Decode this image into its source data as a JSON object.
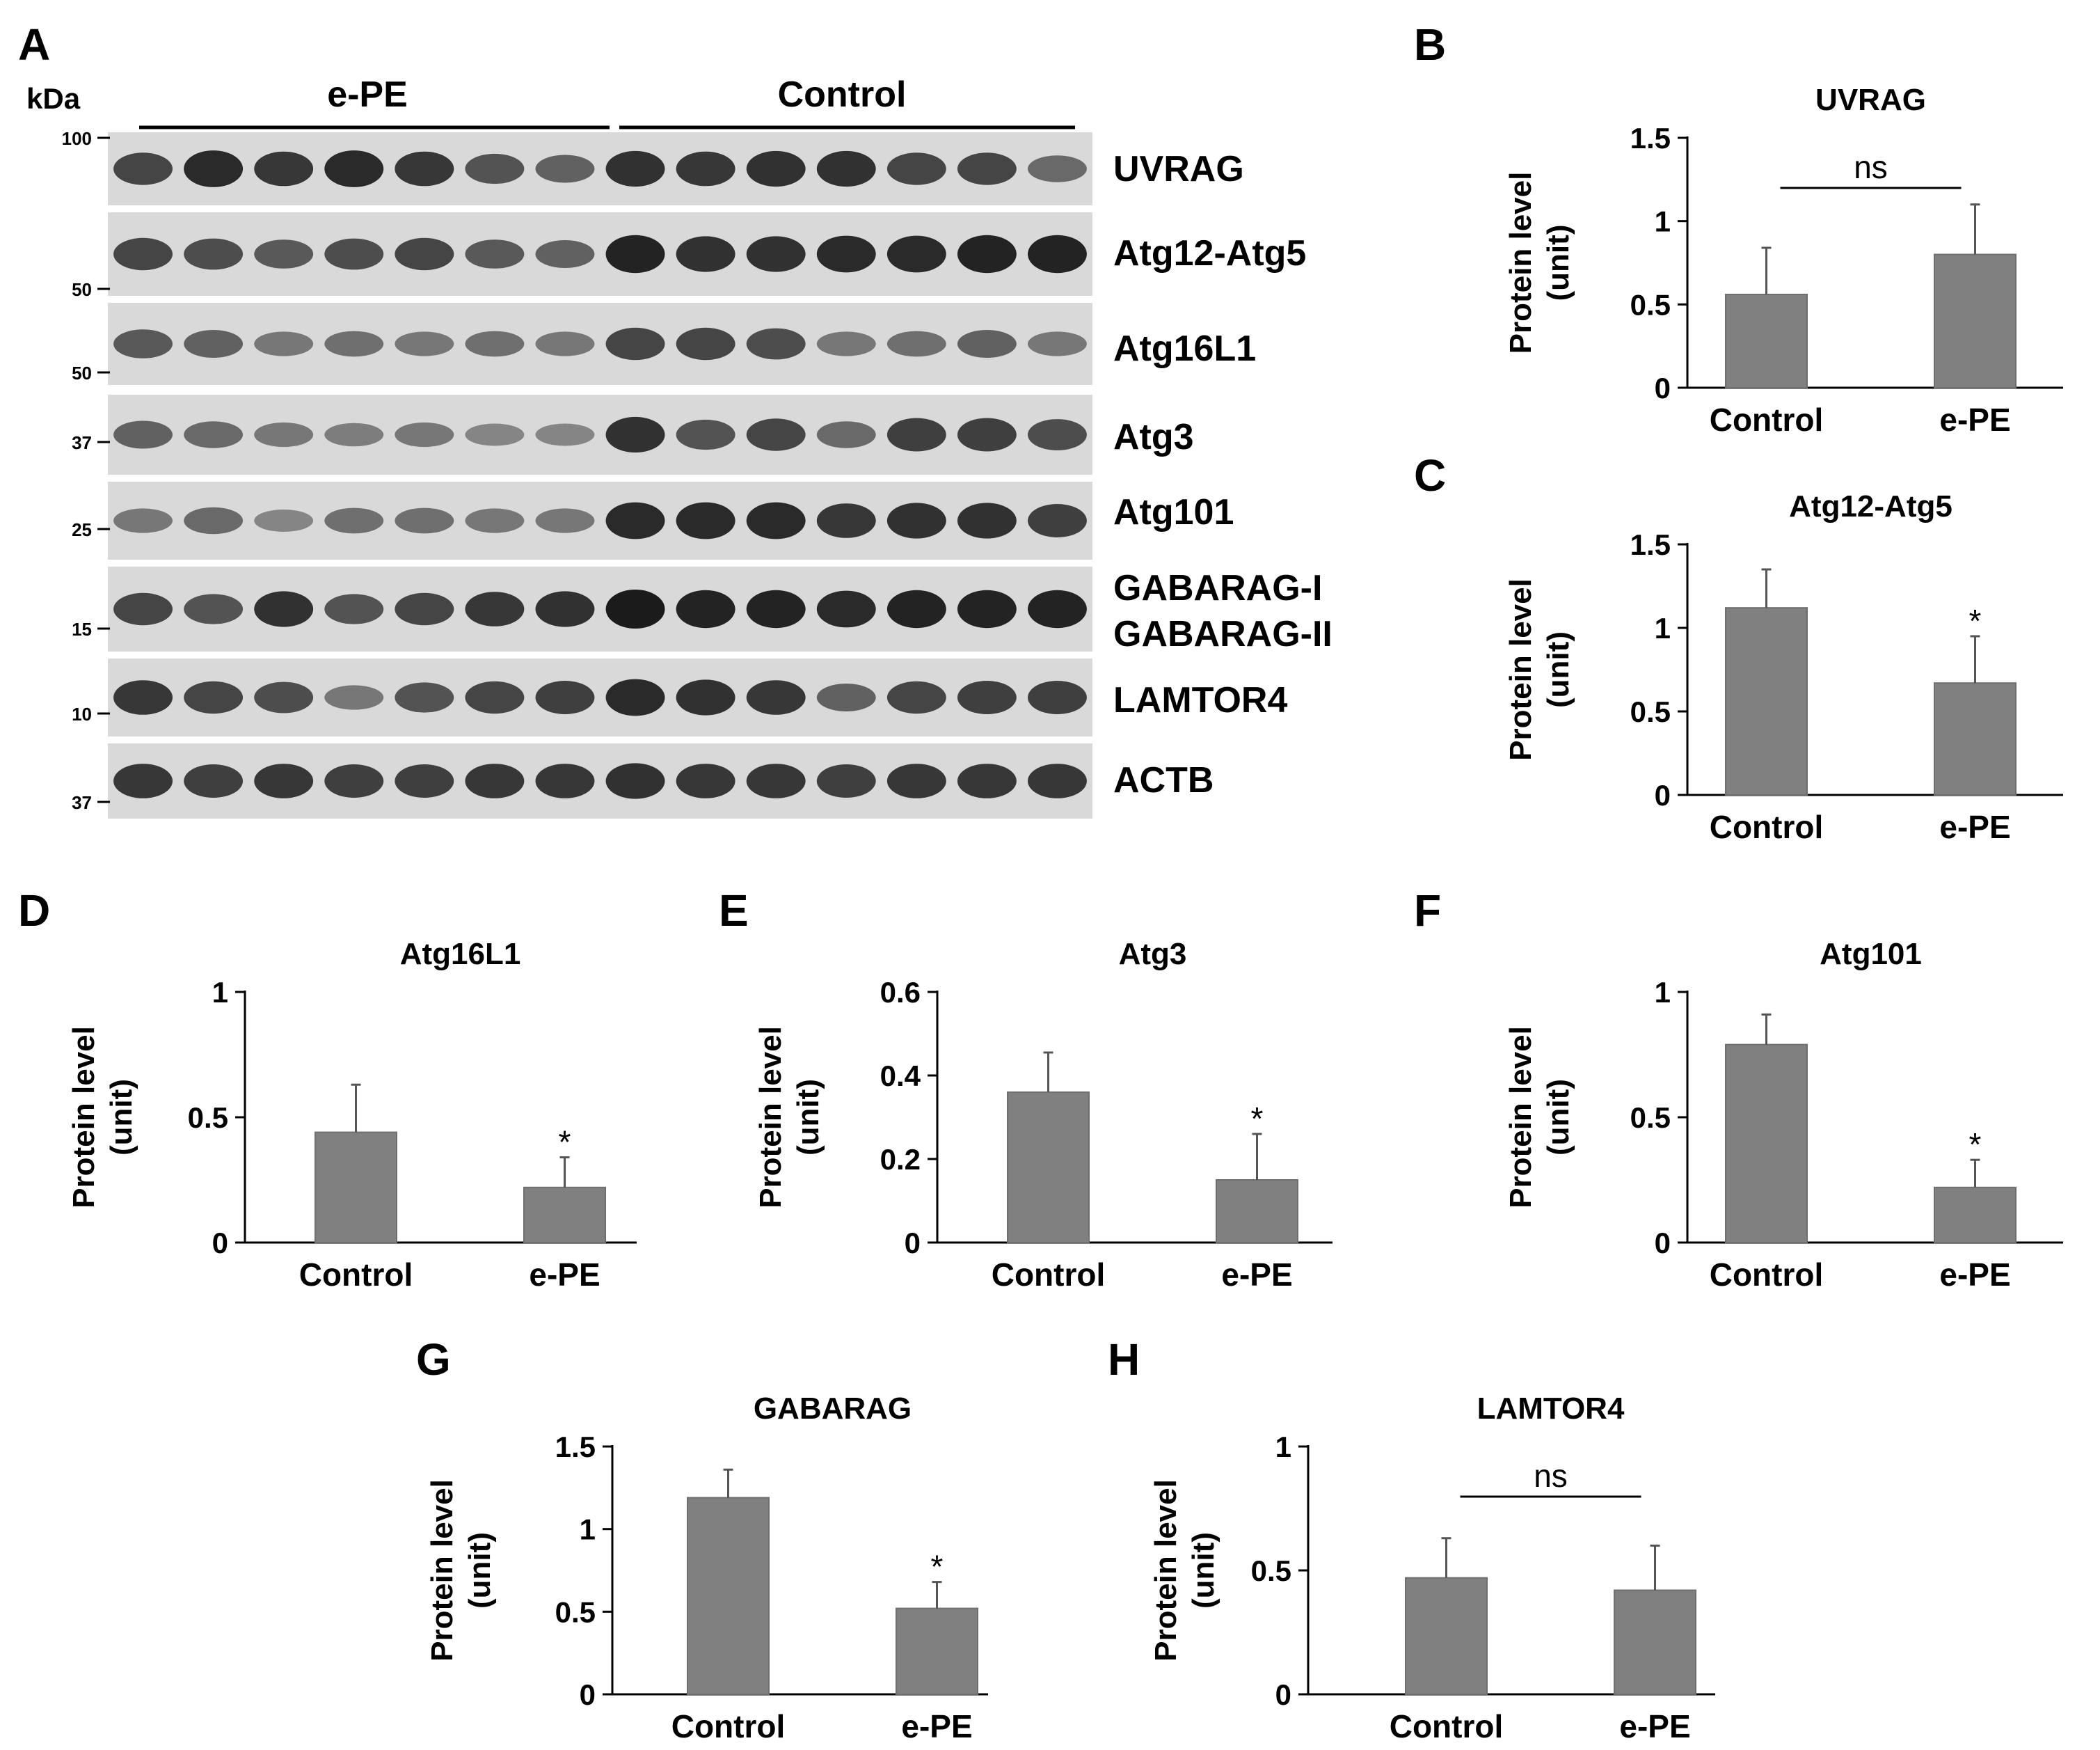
{
  "figure": {
    "blot": {
      "panel_letter": "A",
      "kda_title": "kDa",
      "groups": [
        "e-PE",
        "Control"
      ],
      "lanes_per_group": 7,
      "rows": [
        {
          "label": "UVRAG",
          "marker": "100",
          "intensity": [
            0.7,
            0.9,
            0.8,
            0.9,
            0.8,
            0.6,
            0.5,
            0.85,
            0.8,
            0.85,
            0.85,
            0.7,
            0.7,
            0.45
          ]
        },
        {
          "label": "Atg12-Atg5",
          "marker": "50",
          "intensity": [
            0.7,
            0.65,
            0.55,
            0.65,
            0.7,
            0.55,
            0.5,
            0.95,
            0.85,
            0.85,
            0.9,
            0.9,
            0.95,
            0.95
          ]
        },
        {
          "label": "Atg16L1",
          "marker": "50",
          "intensity": [
            0.55,
            0.5,
            0.35,
            0.4,
            0.35,
            0.4,
            0.35,
            0.7,
            0.7,
            0.65,
            0.35,
            0.4,
            0.5,
            0.35
          ]
        },
        {
          "label": "Atg3",
          "marker": "37",
          "intensity": [
            0.5,
            0.45,
            0.35,
            0.3,
            0.35,
            0.25,
            0.25,
            0.85,
            0.6,
            0.7,
            0.45,
            0.75,
            0.75,
            0.65
          ]
        },
        {
          "label": "Atg101",
          "marker": "25",
          "intensity": [
            0.35,
            0.45,
            0.25,
            0.4,
            0.4,
            0.35,
            0.35,
            0.9,
            0.9,
            0.9,
            0.8,
            0.85,
            0.85,
            0.75
          ]
        },
        {
          "label_lines": [
            "GABARAG-I",
            "GABARAG-II"
          ],
          "marker": "15",
          "intensity": [
            0.7,
            0.6,
            0.85,
            0.6,
            0.7,
            0.8,
            0.85,
            1.0,
            0.95,
            0.95,
            0.9,
            0.95,
            0.95,
            0.95
          ]
        },
        {
          "label": "LAMTOR4",
          "marker": "10",
          "intensity": [
            0.8,
            0.7,
            0.65,
            0.35,
            0.6,
            0.7,
            0.75,
            0.9,
            0.85,
            0.8,
            0.5,
            0.7,
            0.75,
            0.75
          ]
        },
        {
          "label": "ACTB",
          "marker": "37",
          "intensity": [
            0.8,
            0.75,
            0.8,
            0.75,
            0.75,
            0.8,
            0.8,
            0.85,
            0.8,
            0.8,
            0.75,
            0.8,
            0.8,
            0.8
          ]
        }
      ]
    }
  },
  "chart_data": [
    {
      "panel": "B",
      "type": "bar",
      "title": "UVRAG",
      "ylabel": "Protein level (unit)",
      "ylabel_lines": [
        "Protein level",
        "(unit)"
      ],
      "categories": [
        "Control",
        "e-PE"
      ],
      "values": [
        0.56,
        0.8
      ],
      "errors": [
        0.28,
        0.3
      ],
      "ylim": [
        0,
        1.5
      ],
      "yticks": [
        0,
        0.5,
        1,
        1.5
      ],
      "ytick_labels": [
        "0",
        "0.5",
        "1",
        "1.5"
      ],
      "annotations": {
        "bracket_label": "ns",
        "stars": [
          "",
          ""
        ]
      }
    },
    {
      "panel": "C",
      "type": "bar",
      "title": "Atg12-Atg5",
      "ylabel": "Protein level (unit)",
      "ylabel_lines": [
        "Protein level",
        "(unit)"
      ],
      "categories": [
        "Control",
        "e-PE"
      ],
      "values": [
        1.12,
        0.67
      ],
      "errors": [
        0.23,
        0.28
      ],
      "ylim": [
        0,
        1.5
      ],
      "yticks": [
        0,
        0.5,
        1,
        1.5
      ],
      "ytick_labels": [
        "0",
        "0.5",
        "1",
        "1.5"
      ],
      "annotations": {
        "bracket_label": "",
        "stars": [
          "",
          "*"
        ]
      }
    },
    {
      "panel": "D",
      "type": "bar",
      "title": "Atg16L1",
      "ylabel": "Protein level (unit)",
      "ylabel_lines": [
        "Protein level",
        "(unit)"
      ],
      "categories": [
        "Control",
        "e-PE"
      ],
      "values": [
        0.44,
        0.22
      ],
      "errors": [
        0.19,
        0.12
      ],
      "ylim": [
        0,
        1
      ],
      "yticks": [
        0,
        0.5,
        1
      ],
      "ytick_labels": [
        "0",
        "0.5",
        "1"
      ],
      "annotations": {
        "bracket_label": "",
        "stars": [
          "",
          "*"
        ]
      }
    },
    {
      "panel": "E",
      "type": "bar",
      "title": "Atg3",
      "ylabel": "Protein level (unit)",
      "ylabel_lines": [
        "Protein level",
        "(unit)"
      ],
      "categories": [
        "Control",
        "e-PE"
      ],
      "values": [
        0.36,
        0.15
      ],
      "errors": [
        0.095,
        0.11
      ],
      "ylim": [
        0,
        0.6
      ],
      "yticks": [
        0,
        0.2,
        0.4,
        0.6
      ],
      "ytick_labels": [
        "0",
        "0.2",
        "0.4",
        "0.6"
      ],
      "annotations": {
        "bracket_label": "",
        "stars": [
          "",
          "*"
        ]
      }
    },
    {
      "panel": "F",
      "type": "bar",
      "title": "Atg101",
      "ylabel": "Protein level (unit)",
      "ylabel_lines": [
        "Protein level",
        "(unit)"
      ],
      "categories": [
        "Control",
        "e-PE"
      ],
      "values": [
        0.79,
        0.22
      ],
      "errors": [
        0.12,
        0.11
      ],
      "ylim": [
        0,
        1
      ],
      "yticks": [
        0,
        0.5,
        1
      ],
      "ytick_labels": [
        "0",
        "0.5",
        "1"
      ],
      "annotations": {
        "bracket_label": "",
        "stars": [
          "",
          "*"
        ]
      }
    },
    {
      "panel": "G",
      "type": "bar",
      "title": "GABARAG",
      "ylabel": "Protein level (unit)",
      "ylabel_lines": [
        "Protein level",
        "(unit)"
      ],
      "categories": [
        "Control",
        "e-PE"
      ],
      "values": [
        1.19,
        0.52
      ],
      "errors": [
        0.17,
        0.16
      ],
      "ylim": [
        0,
        1.5
      ],
      "yticks": [
        0,
        0.5,
        1,
        1.5
      ],
      "ytick_labels": [
        "0",
        "0.5",
        "1",
        "1.5"
      ],
      "annotations": {
        "bracket_label": "",
        "stars": [
          "",
          "*"
        ]
      }
    },
    {
      "panel": "H",
      "type": "bar",
      "title": "LAMTOR4",
      "ylabel": "Protein level (unit)",
      "ylabel_lines": [
        "Protein level",
        "(unit)"
      ],
      "categories": [
        "Control",
        "e-PE"
      ],
      "values": [
        0.47,
        0.42
      ],
      "errors": [
        0.16,
        0.18
      ],
      "ylim": [
        0,
        1
      ],
      "yticks": [
        0,
        0.5,
        1
      ],
      "ytick_labels": [
        "0",
        "0.5",
        "1"
      ],
      "annotations": {
        "bracket_label": "ns",
        "stars": [
          "",
          ""
        ]
      }
    }
  ],
  "colors": {
    "bar_fill": "#808080",
    "bar_edge": "#6e6e6e",
    "axis": "#000000",
    "blot_bg": "#d9d9d9",
    "band": "#111111"
  }
}
